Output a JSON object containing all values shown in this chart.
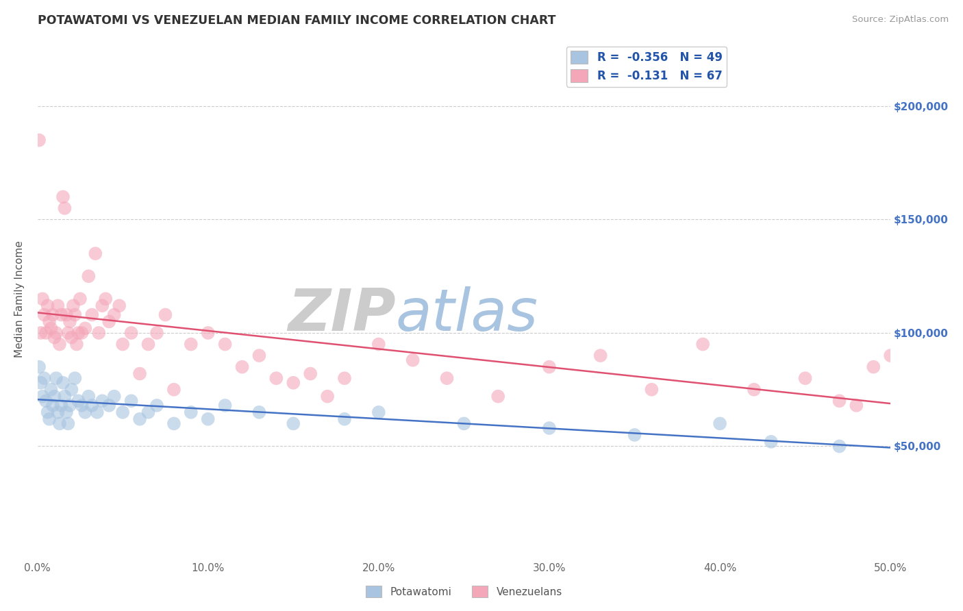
{
  "title": "POTAWATOMI VS VENEZUELAN MEDIAN FAMILY INCOME CORRELATION CHART",
  "source": "Source: ZipAtlas.com",
  "ylabel": "Median Family Income",
  "xlim": [
    0.0,
    0.5
  ],
  "ylim": [
    0,
    230000
  ],
  "xticks": [
    0.0,
    0.1,
    0.2,
    0.3,
    0.4,
    0.5
  ],
  "xticklabels": [
    "0.0%",
    "10.0%",
    "20.0%",
    "30.0%",
    "40.0%",
    "50.0%"
  ],
  "yticks": [
    50000,
    100000,
    150000,
    200000
  ],
  "yticklabels": [
    "$50,000",
    "$100,000",
    "$150,000",
    "$200,000"
  ],
  "ytick_color": "#4472c4",
  "xtick_color": "#666666",
  "series": [
    {
      "name": "Potawatomi",
      "color": "#a8c4e0",
      "line_color": "#4472c4",
      "R": -0.356,
      "N": 49,
      "x": [
        0.001,
        0.002,
        0.003,
        0.004,
        0.005,
        0.006,
        0.007,
        0.008,
        0.009,
        0.01,
        0.011,
        0.012,
        0.013,
        0.014,
        0.015,
        0.016,
        0.017,
        0.018,
        0.019,
        0.02,
        0.022,
        0.024,
        0.026,
        0.028,
        0.03,
        0.032,
        0.035,
        0.038,
        0.042,
        0.045,
        0.05,
        0.055,
        0.06,
        0.065,
        0.07,
        0.08,
        0.09,
        0.1,
        0.11,
        0.13,
        0.15,
        0.18,
        0.2,
        0.25,
        0.3,
        0.35,
        0.4,
        0.43,
        0.47
      ],
      "y": [
        85000,
        78000,
        72000,
        80000,
        70000,
        65000,
        62000,
        75000,
        68000,
        72000,
        80000,
        65000,
        60000,
        68000,
        78000,
        72000,
        65000,
        60000,
        68000,
        75000,
        80000,
        70000,
        68000,
        65000,
        72000,
        68000,
        65000,
        70000,
        68000,
        72000,
        65000,
        70000,
        62000,
        65000,
        68000,
        60000,
        65000,
        62000,
        68000,
        65000,
        60000,
        62000,
        65000,
        60000,
        58000,
        55000,
        60000,
        52000,
        50000
      ]
    },
    {
      "name": "Venezuelans",
      "color": "#f4a7b9",
      "line_color": "#e05070",
      "R": -0.131,
      "N": 67,
      "x": [
        0.001,
        0.002,
        0.003,
        0.004,
        0.005,
        0.006,
        0.007,
        0.008,
        0.009,
        0.01,
        0.011,
        0.012,
        0.013,
        0.014,
        0.015,
        0.016,
        0.017,
        0.018,
        0.019,
        0.02,
        0.021,
        0.022,
        0.023,
        0.024,
        0.025,
        0.026,
        0.028,
        0.03,
        0.032,
        0.034,
        0.036,
        0.038,
        0.04,
        0.042,
        0.045,
        0.048,
        0.05,
        0.055,
        0.06,
        0.065,
        0.07,
        0.075,
        0.08,
        0.09,
        0.1,
        0.11,
        0.12,
        0.13,
        0.14,
        0.15,
        0.16,
        0.17,
        0.18,
        0.2,
        0.22,
        0.24,
        0.27,
        0.3,
        0.33,
        0.36,
        0.39,
        0.42,
        0.45,
        0.47,
        0.48,
        0.49,
        0.5
      ],
      "y": [
        185000,
        100000,
        115000,
        108000,
        100000,
        112000,
        105000,
        102000,
        108000,
        98000,
        100000,
        112000,
        95000,
        108000,
        160000,
        155000,
        108000,
        100000,
        105000,
        98000,
        112000,
        108000,
        95000,
        100000,
        115000,
        100000,
        102000,
        125000,
        108000,
        135000,
        100000,
        112000,
        115000,
        105000,
        108000,
        112000,
        95000,
        100000,
        82000,
        95000,
        100000,
        108000,
        75000,
        95000,
        100000,
        95000,
        85000,
        90000,
        80000,
        78000,
        82000,
        72000,
        80000,
        95000,
        88000,
        80000,
        72000,
        85000,
        90000,
        75000,
        95000,
        75000,
        80000,
        70000,
        68000,
        85000,
        90000
      ]
    }
  ],
  "watermark_zip": "ZIP",
  "watermark_atlas": "atlas",
  "watermark_color_zip": "#cccccc",
  "watermark_color_atlas": "#a8c4e0",
  "legend_R_color": "#2255aa",
  "background_color": "#ffffff",
  "grid_color": "#cccccc",
  "grid_linestyle": "--"
}
